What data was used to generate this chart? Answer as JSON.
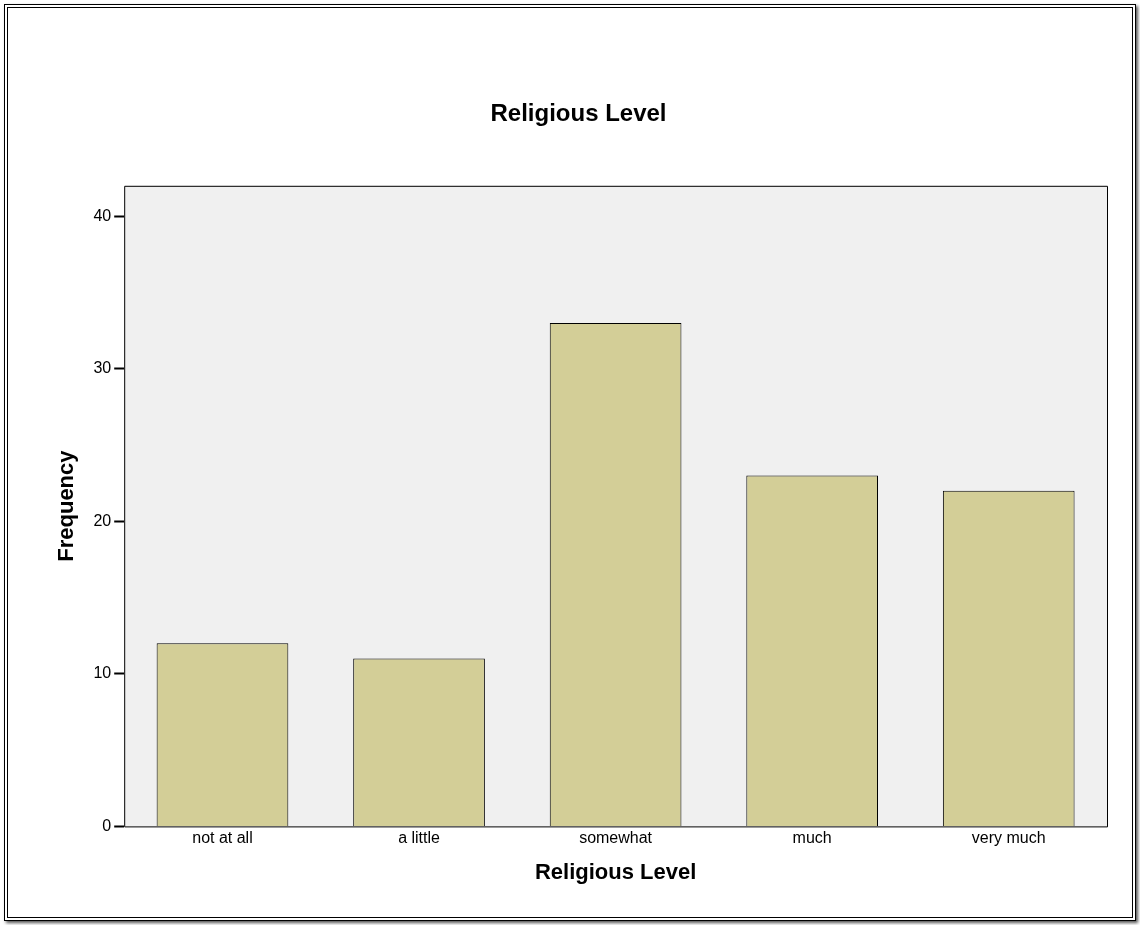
{
  "chart_data": {
    "type": "bar",
    "title": "Religious Level",
    "xlabel": "Religious Level",
    "ylabel": "Frequency",
    "categories": [
      "not at all",
      "a little",
      "somewhat",
      "much",
      "very much"
    ],
    "values": [
      12,
      11,
      33,
      23,
      22
    ],
    "color": "#d3ce97",
    "ylim": [
      0,
      42
    ],
    "yticks": [
      0,
      10,
      20,
      30,
      40
    ],
    "grid": false,
    "legend": false
  }
}
